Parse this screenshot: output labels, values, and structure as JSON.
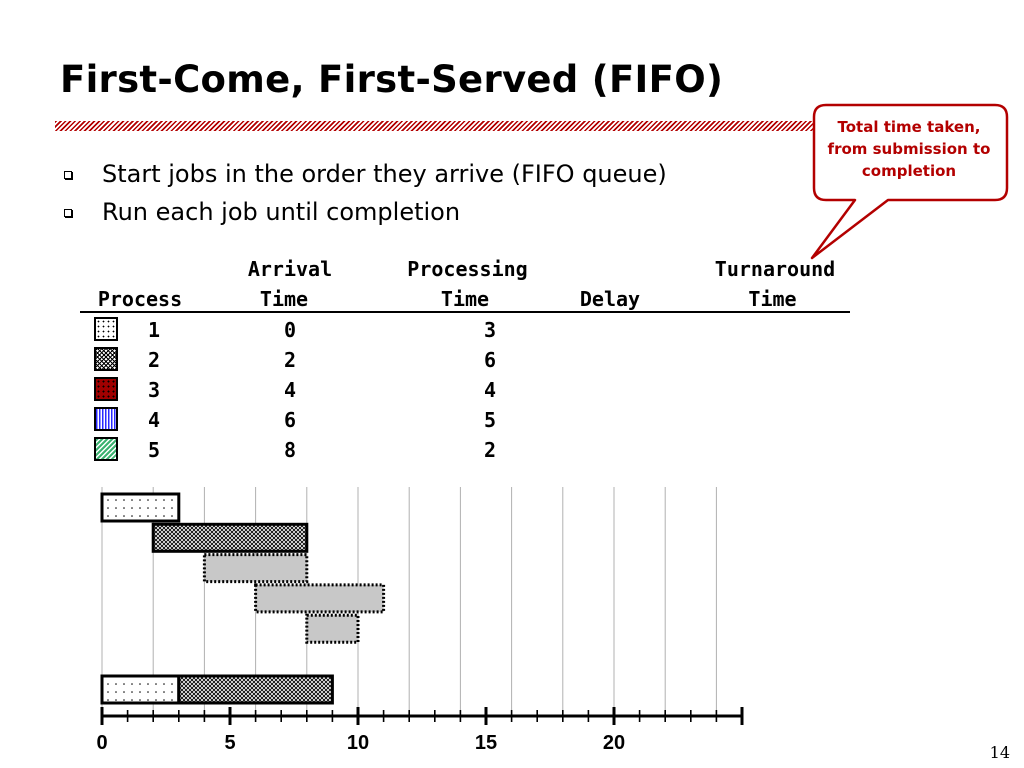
{
  "slide": {
    "title": "First-Come, First-Served (FIFO)",
    "bullets": [
      "Start jobs in the order they arrive (FIFO queue)",
      "Run each job until completion"
    ],
    "callout": {
      "lines": [
        "Total time taken,",
        "from submission to",
        "completion"
      ],
      "color": "#b30000"
    },
    "page_number": "14"
  },
  "table": {
    "headers": {
      "process": [
        "",
        "Process"
      ],
      "arrival": [
        "Arrival",
        "Time"
      ],
      "processing": [
        "Processing",
        "Time"
      ],
      "delay": [
        "",
        "Delay"
      ],
      "turnaround": [
        "Turnaround",
        "Time"
      ]
    },
    "rows": [
      {
        "process": "1",
        "arrival": "0",
        "processing": "3",
        "pattern": "dots"
      },
      {
        "process": "2",
        "arrival": "2",
        "processing": "6",
        "pattern": "crosshatch"
      },
      {
        "process": "3",
        "arrival": "4",
        "processing": "4",
        "pattern": "red-dots"
      },
      {
        "process": "4",
        "arrival": "6",
        "processing": "5",
        "pattern": "blue-stripes"
      },
      {
        "process": "5",
        "arrival": "8",
        "processing": "2",
        "pattern": "green-hatch"
      }
    ]
  },
  "chart_data": {
    "type": "gantt",
    "x_ticks": [
      "0",
      "5",
      "10",
      "15",
      "20"
    ],
    "x_tick_values": [
      0,
      5,
      10,
      15,
      20
    ],
    "xlim": [
      0,
      25
    ],
    "grid": true,
    "rows": [
      {
        "bars": [
          {
            "start": 0,
            "end": 3,
            "style": "dots"
          }
        ]
      },
      {
        "bars": [
          {
            "start": 2,
            "end": 8,
            "style": "crosshatch"
          }
        ]
      },
      {
        "bars": [
          {
            "start": 4,
            "end": 8,
            "style": "placeholder"
          }
        ]
      },
      {
        "bars": [
          {
            "start": 6,
            "end": 11,
            "style": "placeholder"
          }
        ]
      },
      {
        "bars": [
          {
            "start": 8,
            "end": 10,
            "style": "placeholder"
          }
        ]
      },
      {
        "bars": [
          {
            "start": 0,
            "end": 3,
            "style": "dots"
          },
          {
            "start": 3,
            "end": 9,
            "style": "crosshatch"
          }
        ]
      }
    ],
    "colors": {
      "placeholder_fill": "#c8c8c8",
      "red": "#a00000",
      "blue": "#2a2aff",
      "green": "#3cb371"
    }
  }
}
